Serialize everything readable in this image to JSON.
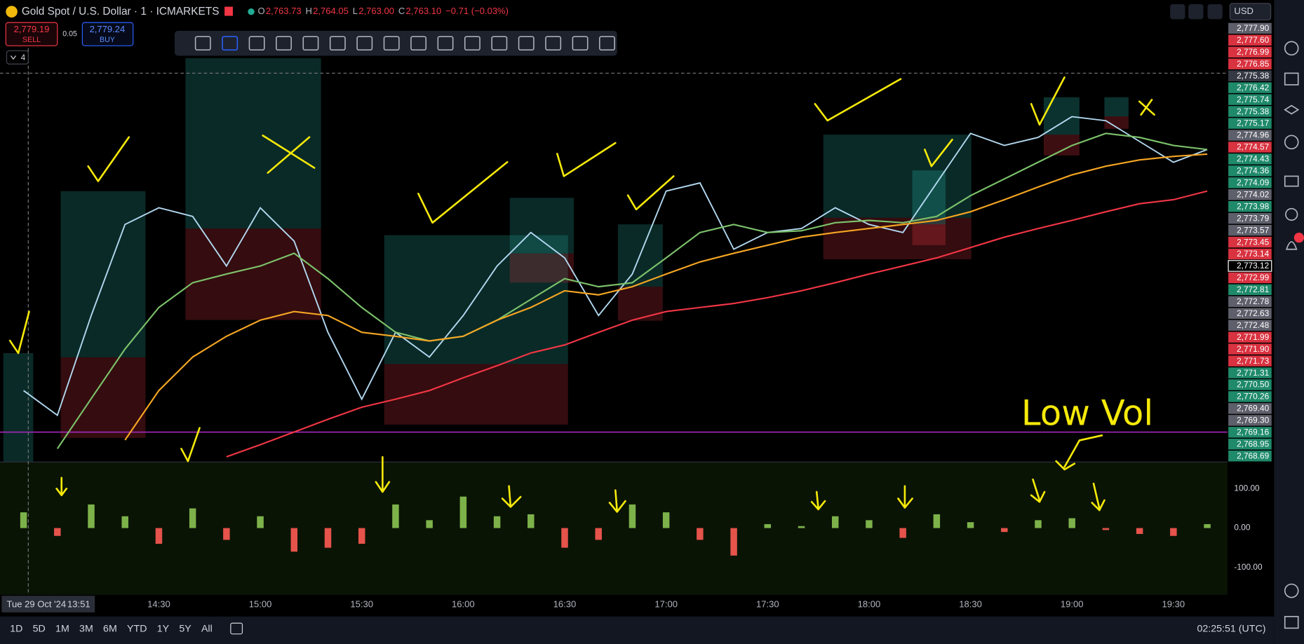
{
  "header": {
    "symbol": "Gold Spot / U.S. Dollar · 1 · ICMARKETS",
    "ohlc": [
      {
        "label": "O",
        "value": "2,763.73"
      },
      {
        "label": "H",
        "value": "2,764.05"
      },
      {
        "label": "L",
        "value": "2,763.00"
      },
      {
        "label": "C",
        "value": "2,763.10"
      }
    ],
    "change": "−0.71 (−0.03%)",
    "sell_price": "2,779.19",
    "sell_label": "SELL",
    "spread": "0.05",
    "buy_price": "2,779.24",
    "buy_label": "BUY",
    "indicators_count": "4",
    "currency": "USD"
  },
  "price_labels": [
    {
      "text": "2,777.90",
      "color": "#5d606b"
    },
    {
      "text": "2,777.60",
      "color": "#d93240"
    },
    {
      "text": "2,776.99",
      "color": "#d93240"
    },
    {
      "text": "2,776.85",
      "color": "#d93240"
    },
    {
      "text": "2,775.38",
      "color": "#363a45"
    },
    {
      "text": "2,776.42",
      "color": "#1f8a6a"
    },
    {
      "text": "2,775.74",
      "color": "#1f8a6a"
    },
    {
      "text": "2,775.38",
      "color": "#1f8a6a"
    },
    {
      "text": "2,775.17",
      "color": "#1f8a6a"
    },
    {
      "text": "2,774.96",
      "color": "#5d606b"
    },
    {
      "text": "2,774.57",
      "color": "#d93240"
    },
    {
      "text": "2,774.43",
      "color": "#1f8a6a"
    },
    {
      "text": "2,774.36",
      "color": "#1f8a6a"
    },
    {
      "text": "2,774.09",
      "color": "#1f8a6a"
    },
    {
      "text": "2,774.02",
      "color": "#5d606b"
    },
    {
      "text": "2,773.98",
      "color": "#1f8a6a"
    },
    {
      "text": "2,773.79",
      "color": "#5d606b"
    },
    {
      "text": "2,773.57",
      "color": "#5d606b"
    },
    {
      "text": "2,773.45",
      "color": "#d93240"
    },
    {
      "text": "2,773.14",
      "color": "#d93240"
    },
    {
      "text": "2,773.12",
      "color": "#000000"
    },
    {
      "text": "2,772.99",
      "color": "#d93240"
    },
    {
      "text": "2,772.81",
      "color": "#1f8a6a"
    },
    {
      "text": "2,772.78",
      "color": "#5d606b"
    },
    {
      "text": "2,772.63",
      "color": "#5d606b"
    },
    {
      "text": "2,772.48",
      "color": "#5d606b"
    },
    {
      "text": "2,771.99",
      "color": "#d93240"
    },
    {
      "text": "2,771.90",
      "color": "#d93240"
    },
    {
      "text": "2,771.73",
      "color": "#d93240"
    },
    {
      "text": "2,771.31",
      "color": "#1f8a6a"
    },
    {
      "text": "2,770.50",
      "color": "#1f8a6a"
    },
    {
      "text": "2,770.26",
      "color": "#1f8a6a"
    },
    {
      "text": "2,769.40",
      "color": "#5d606b"
    },
    {
      "text": "2,769.30",
      "color": "#5d606b"
    },
    {
      "text": "2,769.16",
      "color": "#1f8a6a"
    },
    {
      "text": "2,768.95",
      "color": "#1f8a6a"
    },
    {
      "text": "2,768.69",
      "color": "#1f8a6a"
    }
  ],
  "time_axis": {
    "start_date": "Tue 29 Oct '24",
    "start_time": "13:51",
    "labels": [
      "14:30",
      "15:00",
      "15:30",
      "16:00",
      "16:30",
      "17:00",
      "17:30",
      "18:00",
      "18:30",
      "19:00",
      "19:30"
    ]
  },
  "chart_data": [
    {
      "type": "line",
      "x": [
        "13:50",
        "14:00",
        "14:10",
        "14:20",
        "14:30",
        "14:40",
        "14:50",
        "15:00",
        "15:10",
        "15:20",
        "15:30",
        "15:40",
        "15:50",
        "16:00",
        "16:10",
        "16:20",
        "16:30",
        "16:40",
        "16:50",
        "17:00",
        "17:10",
        "17:20",
        "17:30",
        "17:40",
        "17:50",
        "18:00",
        "18:10",
        "18:20",
        "18:30",
        "18:40",
        "18:50",
        "19:00",
        "19:10",
        "19:20",
        "19:30",
        "19:40"
      ],
      "ylim": [
        2768.64,
        2776.22
      ],
      "series": [
        {
          "color": "#b2d8f0",
          "values": [
            2769.88,
            2769.45,
            2771.18,
            2772.76,
            2773.05,
            2772.9,
            2772.04,
            2773.05,
            2772.47,
            2770.89,
            2769.73,
            2770.89,
            2770.46,
            2771.18,
            2772.04,
            2772.62,
            2772.18,
            2771.18,
            2771.9,
            2773.34,
            2773.48,
            2772.33,
            2772.62,
            2772.69,
            2773.05,
            2772.76,
            2772.62,
            2773.48,
            2774.34,
            2774.13,
            2774.27,
            2774.63,
            2774.56,
            2774.2,
            2773.84,
            2774.06
          ]
        },
        {
          "color": "#7cc26b",
          "values": [
            null,
            2768.87,
            2769.74,
            2770.6,
            2771.32,
            2771.75,
            2771.9,
            2772.04,
            2772.26,
            2771.82,
            2771.32,
            2770.89,
            2770.74,
            2770.82,
            2771.1,
            2771.46,
            2771.82,
            2771.68,
            2771.75,
            2772.18,
            2772.62,
            2772.76,
            2772.62,
            2772.65,
            2772.79,
            2772.83,
            2772.79,
            2772.9,
            2773.26,
            2773.55,
            2773.84,
            2774.13,
            2774.34,
            2774.27,
            2774.13,
            2774.06
          ]
        },
        {
          "color": "#f5a623",
          "values": [
            null,
            null,
            null,
            2769.02,
            2769.88,
            2770.46,
            2770.82,
            2771.1,
            2771.25,
            2771.18,
            2770.89,
            2770.82,
            2770.74,
            2770.82,
            2771.1,
            2771.32,
            2771.61,
            2771.54,
            2771.68,
            2771.9,
            2772.11,
            2772.26,
            2772.4,
            2772.54,
            2772.62,
            2772.69,
            2772.76,
            2772.83,
            2772.98,
            2773.19,
            2773.41,
            2773.62,
            2773.77,
            2773.88,
            2773.94,
            2773.98
          ]
        },
        {
          "color": "#f23645",
          "values": [
            null,
            null,
            null,
            null,
            null,
            null,
            2768.73,
            2768.94,
            2769.16,
            2769.38,
            2769.59,
            2769.73,
            2769.88,
            2770.1,
            2770.31,
            2770.53,
            2770.67,
            2770.89,
            2771.1,
            2771.25,
            2771.32,
            2771.39,
            2771.49,
            2771.61,
            2771.75,
            2771.9,
            2772.04,
            2772.18,
            2772.36,
            2772.54,
            2772.69,
            2772.83,
            2772.98,
            2773.12,
            2773.19,
            2773.34
          ]
        }
      ]
    },
    {
      "type": "bar",
      "x": [
        "13:50",
        "14:00",
        "14:10",
        "14:20",
        "14:30",
        "14:40",
        "14:50",
        "15:00",
        "15:10",
        "15:20",
        "15:30",
        "15:40",
        "15:50",
        "16:00",
        "16:10",
        "16:20",
        "16:30",
        "16:40",
        "16:50",
        "17:00",
        "17:10",
        "17:20",
        "17:30",
        "17:40",
        "17:50",
        "18:00",
        "18:10",
        "18:20",
        "18:30",
        "18:40",
        "18:50",
        "19:00",
        "19:10",
        "19:20",
        "19:30",
        "19:40"
      ],
      "values": [
        40,
        -20,
        60,
        30,
        -40,
        50,
        -30,
        30,
        -60,
        -50,
        -40,
        60,
        20,
        80,
        30,
        35,
        -50,
        -30,
        60,
        40,
        -30,
        -70,
        10,
        5,
        30,
        20,
        -25,
        35,
        15,
        -10,
        20,
        25,
        -5,
        -15,
        -20,
        10
      ],
      "colors": [
        "#7db24a",
        "#e5534b"
      ],
      "ylim": [
        -170,
        168
      ],
      "yticks": [
        {
          "value": 100,
          "label": "100.00"
        },
        {
          "value": 0,
          "label": "0.00"
        },
        {
          "value": -100,
          "label": "-100.00"
        }
      ]
    }
  ],
  "annotation": "Low Vol",
  "ranges": [
    "1D",
    "5D",
    "1M",
    "3M",
    "6M",
    "YTD",
    "1Y",
    "5Y",
    "All"
  ],
  "clock": "02:25:51 (UTC)"
}
